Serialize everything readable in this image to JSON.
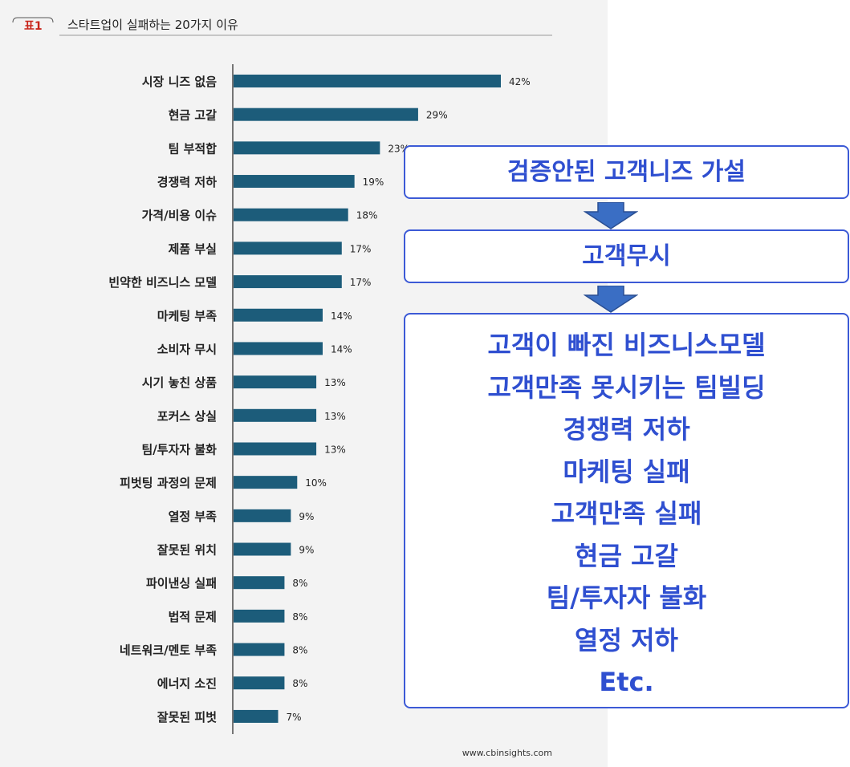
{
  "header": {
    "tag": "표1",
    "title": "스타트업이 실패하는 20가지 이유"
  },
  "source": "www.cbinsights.com",
  "colors": {
    "bar": "#1c5c7a",
    "box_border": "#3c5ad6",
    "box_text": "#2f4fd0",
    "arrow": "#3a6ec4"
  },
  "chart_data": {
    "type": "bar",
    "orientation": "horizontal",
    "title": "스타트업이 실패하는 20가지 이유",
    "categories": [
      "시장 니즈 없음",
      "현금 고갈",
      "팀 부적합",
      "경쟁력 저하",
      "가격/비용 이슈",
      "제품 부실",
      "빈약한 비즈니스 모델",
      "마케팅 부족",
      "소비자 무시",
      "시기 놓친 상품",
      "포커스 상실",
      "팀/투자자 불화",
      "피벗팅 과정의 문제",
      "열정 부족",
      "잘못된 위치",
      "파이낸싱 실패",
      "법적 문제",
      "네트워크/멘토 부족",
      "에너지 소진",
      "잘못된 피벗"
    ],
    "values": [
      42,
      29,
      23,
      19,
      18,
      17,
      17,
      14,
      14,
      13,
      13,
      13,
      10,
      9,
      9,
      8,
      8,
      8,
      8,
      7
    ],
    "value_labels": [
      "42%",
      "29%",
      "23%",
      "19%",
      "18%",
      "17%",
      "17%",
      "14%",
      "14%",
      "13%",
      "13%",
      "13%",
      "10%",
      "9%",
      "9%",
      "8%",
      "8%",
      "8%",
      "8%",
      "7%"
    ],
    "unit": "%",
    "xlim": [
      0,
      42
    ]
  },
  "flow": {
    "box1": "검증안된 고객니즈 가설",
    "box2": "고객무시",
    "box3_lines": [
      "고객이 빠진 비즈니스모델",
      "고객만족 못시키는 팀빌딩",
      "경쟁력 저하",
      "마케팅 실패",
      "고객만족 실패",
      "현금 고갈",
      "팀/투자자 불화",
      "열정 저하",
      "Etc."
    ]
  }
}
